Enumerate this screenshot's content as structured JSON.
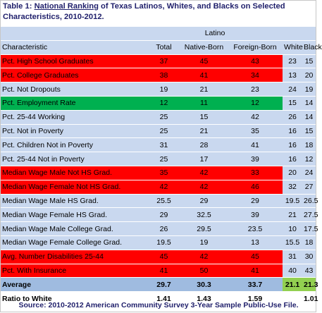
{
  "title": {
    "prefix": "Table 1: ",
    "underlined": "National Ranking",
    "rest": " of Texas Latinos, Whites, and Blacks on Selected Characteristics, 2010-2012."
  },
  "group_header": "Latino",
  "columns": [
    "Characteristic",
    "Total",
    "Native-Born",
    "Foreign-Born",
    "White",
    "Black"
  ],
  "rows": [
    {
      "label": "Pct. High School Graduates",
      "values": [
        "37",
        "45",
        "43",
        "23",
        "15"
      ],
      "highlight": "red"
    },
    {
      "label": "Pct. College Graduates",
      "values": [
        "38",
        "41",
        "34",
        "13",
        "20"
      ],
      "highlight": "red"
    },
    {
      "label": "Pct. Not Dropouts",
      "values": [
        "19",
        "21",
        "23",
        "24",
        "19"
      ],
      "highlight": "none"
    },
    {
      "label": "Pct. Employment Rate",
      "values": [
        "12",
        "11",
        "12",
        "15",
        "14"
      ],
      "highlight": "green"
    },
    {
      "label": "Pct. 25-44 Working",
      "values": [
        "25",
        "15",
        "42",
        "26",
        "14"
      ],
      "highlight": "none"
    },
    {
      "label": "Pct. Not in Poverty",
      "values": [
        "25",
        "21",
        "35",
        "16",
        "15"
      ],
      "highlight": "none"
    },
    {
      "label": "Pct. Children Not in Poverty",
      "values": [
        "31",
        "28",
        "41",
        "16",
        "18"
      ],
      "highlight": "none"
    },
    {
      "label": "Pct. 25-44 Not in Poverty",
      "values": [
        "25",
        "17",
        "39",
        "16",
        "12"
      ],
      "highlight": "none"
    },
    {
      "label": "Median Wage Male Not HS Grad.",
      "values": [
        "35",
        "42",
        "33",
        "20",
        "24"
      ],
      "highlight": "red"
    },
    {
      "label": "Median Wage Female Not HS Grad.",
      "values": [
        "42",
        "42",
        "46",
        "32",
        "27"
      ],
      "highlight": "red"
    },
    {
      "label": "Median Wage Male HS Grad.",
      "values": [
        "25.5",
        "29",
        "29",
        "19.5",
        "26.5"
      ],
      "highlight": "none"
    },
    {
      "label": "Median Wage Female HS Grad.",
      "values": [
        "29",
        "32.5",
        "39",
        "21",
        "27.5"
      ],
      "highlight": "none"
    },
    {
      "label": "Median Wage Male College Grad.",
      "values": [
        "26",
        "29.5",
        "23.5",
        "10",
        "17.5"
      ],
      "highlight": "none"
    },
    {
      "label": "Median Wage Female College Grad.",
      "values": [
        "19.5",
        "19",
        "13",
        "15.5",
        "18"
      ],
      "highlight": "none"
    },
    {
      "label": "Avg. Number Disabilities 25-44",
      "values": [
        "45",
        "42",
        "45",
        "31",
        "30"
      ],
      "highlight": "red"
    },
    {
      "label": "Pct. With Insurance",
      "values": [
        "41",
        "50",
        "41",
        "40",
        "43"
      ],
      "highlight": "red"
    }
  ],
  "average": {
    "label": "Average",
    "values": [
      "29.7",
      "30.3",
      "33.7",
      "21.1",
      "21.3"
    ]
  },
  "ratio": {
    "label": "Ratio to White",
    "values": [
      "1.41",
      "1.43",
      "1.59",
      "",
      "1.01"
    ]
  },
  "source": "Source: 2010-2012 American Community Survey 3-Year Sample Public-Use File.",
  "colors": {
    "header_bg": "#c9d8ef",
    "red": "#ff0000",
    "green": "#00b050",
    "average_bg": "#9fbbe0",
    "average_white_black": "#92d050",
    "title_text": "#1f1f6b"
  }
}
